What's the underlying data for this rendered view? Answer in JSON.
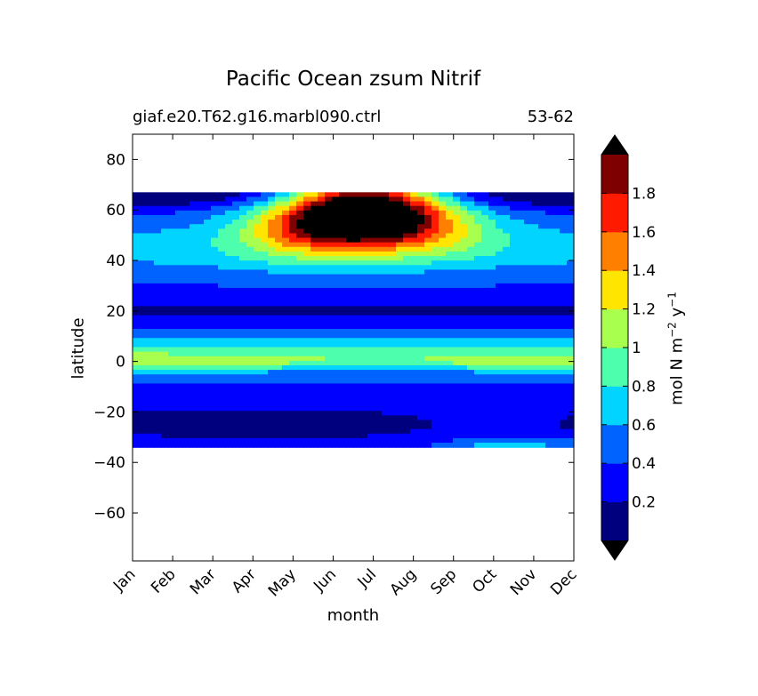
{
  "chart_data": {
    "type": "heatmap",
    "title": "Pacific Ocean zsum Nitrif",
    "subtitle_left": "giaf.e20.T62.g16.marbl090.ctrl",
    "subtitle_right": "53-62",
    "xlabel": "month",
    "ylabel": "latitude",
    "colorbar_label_parts": [
      "mol N m",
      "−2",
      " y",
      "−1"
    ],
    "x_categories": [
      "Jan",
      "Feb",
      "Mar",
      "Apr",
      "May",
      "Jun",
      "Jul",
      "Aug",
      "Sep",
      "Oct",
      "Nov",
      "Dec"
    ],
    "y_ticks": [
      80,
      60,
      40,
      20,
      0,
      -20,
      -40,
      -60
    ],
    "y_tick_labels": [
      "80",
      "60",
      "40",
      "20",
      "0",
      "−20",
      "−40",
      "−60"
    ],
    "ylim": [
      -79,
      90
    ],
    "data_lat_range": [
      -34,
      67
    ],
    "levels": [
      0,
      0.2,
      0.4,
      0.6,
      0.8,
      1.0,
      1.2,
      1.4,
      1.6,
      1.8,
      2.0
    ],
    "colorbar_ticks": [
      "0.2",
      "0.4",
      "0.6",
      "0.8",
      "1",
      "1.2",
      "1.4",
      "1.6",
      "1.8"
    ],
    "colors": [
      "#00007f",
      "#0000ff",
      "#0063ff",
      "#00d4ff",
      "#4dffad",
      "#a9ff4d",
      "#ffe500",
      "#ff7f00",
      "#ff1a00",
      "#7f0000"
    ],
    "over_color": "#000000",
    "under_color": "#000000",
    "contours_by_month": [
      {
        "month": "Jan",
        "lat": [
          67,
          62,
          57,
          48,
          28,
          25,
          8,
          3,
          0,
          -4,
          -7,
          -13,
          -27,
          -31,
          -34
        ],
        "level": [
          0,
          1,
          2,
          4,
          4,
          3,
          2,
          3,
          4,
          5,
          3,
          2,
          2,
          3,
          4
        ]
      },
      {
        "month": "Jun",
        "lat": [
          67,
          65,
          60,
          50,
          43,
          38,
          35,
          30,
          25,
          20,
          8,
          3,
          0,
          -4,
          -7,
          -13,
          -27,
          -31,
          -34
        ],
        "level": [
          10,
          10,
          10,
          10,
          9,
          7,
          5,
          3,
          2,
          1,
          2,
          3,
          4,
          3,
          3,
          2,
          1,
          1,
          2
        ]
      }
    ]
  }
}
